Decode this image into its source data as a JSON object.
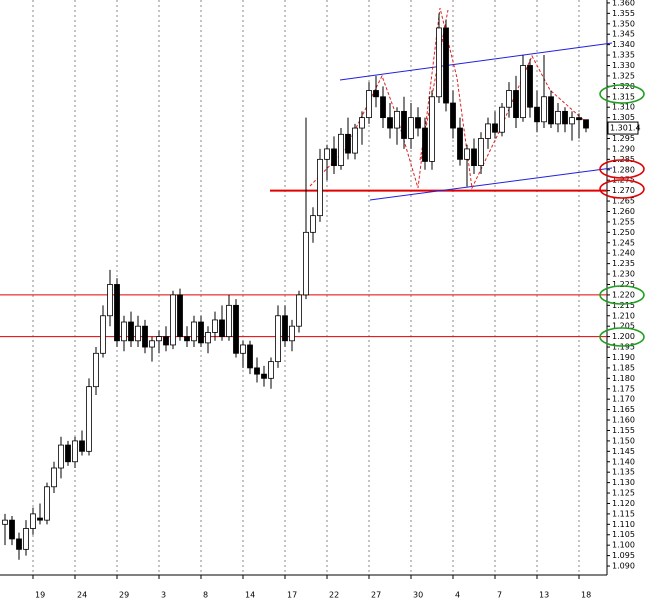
{
  "chart_data": {
    "type": "candlestick",
    "categories": [
      null,
      null,
      null,
      null,
      "19",
      null,
      null,
      null,
      null,
      null,
      "24",
      null,
      null,
      null,
      null,
      null,
      "29",
      null,
      null,
      null,
      null,
      null,
      "3",
      null,
      null,
      null,
      null,
      null,
      "8",
      null,
      null,
      null,
      null,
      null,
      "14",
      null,
      null,
      null,
      null,
      null,
      "17",
      null,
      null,
      null,
      null,
      null,
      "22",
      null,
      null,
      null,
      null,
      null,
      "27",
      null,
      null,
      null,
      null,
      null,
      "30",
      null,
      null,
      null,
      null,
      null,
      "4",
      null,
      null,
      null,
      null,
      null,
      "7",
      null,
      null,
      null,
      null,
      null,
      "13",
      null,
      null,
      null,
      null,
      null,
      "18",
      null
    ],
    "open": [
      1.11,
      1.112,
      1.103,
      1.098,
      1.108,
      1.113,
      1.112,
      1.128,
      1.137,
      1.148,
      1.14,
      1.15,
      1.145,
      1.176,
      1.192,
      1.21,
      1.225,
      1.198,
      1.207,
      1.198,
      1.205,
      1.195,
      1.198,
      1.2,
      1.196,
      1.22,
      1.2,
      1.198,
      1.207,
      1.197,
      1.202,
      1.208,
      1.2,
      1.215,
      1.192,
      1.196,
      1.185,
      1.182,
      1.18,
      1.188,
      1.21,
      1.198,
      1.205,
      1.22,
      1.25,
      1.258,
      1.285,
      1.29,
      1.282,
      1.297,
      1.288,
      1.3,
      1.305,
      1.318,
      1.315,
      1.305,
      1.3,
      1.308,
      1.295,
      1.305,
      1.3,
      1.284,
      1.315,
      1.348,
      1.312,
      1.3,
      1.285,
      1.29,
      1.282,
      1.295,
      1.302,
      1.298,
      1.31,
      1.318,
      1.305,
      1.33,
      1.31,
      1.303,
      1.315,
      1.302,
      1.308,
      1.302,
      1.305,
      1.304
    ],
    "high": [
      1.115,
      1.114,
      1.106,
      1.112,
      1.118,
      1.12,
      1.13,
      1.14,
      1.152,
      1.15,
      1.152,
      1.155,
      1.18,
      1.195,
      1.215,
      1.232,
      1.228,
      1.21,
      1.212,
      1.21,
      1.208,
      1.2,
      1.203,
      1.205,
      1.222,
      1.223,
      1.205,
      1.21,
      1.21,
      1.205,
      1.212,
      1.215,
      1.22,
      1.218,
      1.198,
      1.198,
      1.19,
      1.186,
      1.19,
      1.215,
      1.215,
      1.208,
      1.222,
      1.305,
      1.262,
      1.29,
      1.292,
      1.296,
      1.3,
      1.305,
      1.302,
      1.308,
      1.322,
      1.325,
      1.32,
      1.312,
      1.31,
      1.315,
      1.312,
      1.31,
      1.305,
      1.318,
      1.355,
      1.352,
      1.318,
      1.305,
      1.292,
      1.295,
      1.298,
      1.305,
      1.308,
      1.312,
      1.322,
      1.325,
      1.335,
      1.333,
      1.318,
      1.335,
      1.318,
      1.312,
      1.31,
      1.308,
      1.307,
      1.304
    ],
    "low": [
      1.1,
      1.1,
      1.093,
      1.095,
      1.105,
      1.11,
      1.11,
      1.125,
      1.132,
      1.138,
      1.137,
      1.143,
      1.143,
      1.172,
      1.19,
      1.205,
      1.195,
      1.193,
      1.195,
      1.195,
      1.192,
      1.188,
      1.192,
      1.193,
      1.194,
      1.198,
      1.195,
      1.195,
      1.195,
      1.192,
      1.198,
      1.198,
      1.198,
      1.19,
      1.185,
      1.182,
      1.178,
      1.176,
      1.175,
      1.185,
      1.195,
      1.193,
      1.202,
      1.218,
      1.245,
      1.255,
      1.275,
      1.278,
      1.28,
      1.285,
      1.285,
      1.292,
      1.302,
      1.31,
      1.3,
      1.295,
      1.292,
      1.29,
      1.29,
      1.296,
      1.28,
      1.28,
      1.312,
      1.308,
      1.295,
      1.282,
      1.272,
      1.278,
      1.278,
      1.29,
      1.295,
      1.296,
      1.305,
      1.3,
      1.303,
      1.305,
      1.298,
      1.3,
      1.3,
      1.298,
      1.298,
      1.294,
      1.295,
      1.298
    ],
    "close": [
      1.112,
      1.103,
      1.098,
      1.108,
      1.115,
      1.112,
      1.128,
      1.137,
      1.148,
      1.14,
      1.15,
      1.145,
      1.176,
      1.192,
      1.21,
      1.225,
      1.198,
      1.207,
      1.198,
      1.205,
      1.195,
      1.198,
      1.2,
      1.196,
      1.22,
      1.2,
      1.198,
      1.207,
      1.197,
      1.202,
      1.208,
      1.2,
      1.215,
      1.192,
      1.196,
      1.185,
      1.182,
      1.18,
      1.188,
      1.21,
      1.198,
      1.205,
      1.22,
      1.25,
      1.258,
      1.285,
      1.29,
      1.282,
      1.297,
      1.288,
      1.3,
      1.305,
      1.318,
      1.315,
      1.305,
      1.3,
      1.308,
      1.295,
      1.305,
      1.3,
      1.284,
      1.315,
      1.348,
      1.312,
      1.3,
      1.285,
      1.29,
      1.282,
      1.295,
      1.302,
      1.298,
      1.31,
      1.318,
      1.305,
      1.33,
      1.31,
      1.303,
      1.315,
      1.302,
      1.308,
      1.302,
      1.305,
      1.304,
      1.3
    ],
    "last_price_label": "1.301.4",
    "ylim": [
      1.0857,
      1.3614
    ],
    "yticks": [
      {
        "value": 1.09,
        "label": "1.090"
      },
      {
        "value": 1.095,
        "label": "1.095"
      },
      {
        "value": 1.1,
        "label": "1.100"
      },
      {
        "value": 1.105,
        "label": "1.105"
      },
      {
        "value": 1.11,
        "label": "1.110"
      },
      {
        "value": 1.115,
        "label": "1.115"
      },
      {
        "value": 1.12,
        "label": "1.120"
      },
      {
        "value": 1.125,
        "label": "1.125"
      },
      {
        "value": 1.13,
        "label": "1.130"
      },
      {
        "value": 1.135,
        "label": "1.135"
      },
      {
        "value": 1.14,
        "label": "1.140"
      },
      {
        "value": 1.145,
        "label": "1.145"
      },
      {
        "value": 1.15,
        "label": "1.150"
      },
      {
        "value": 1.155,
        "label": "1.155"
      },
      {
        "value": 1.16,
        "label": "1.160"
      },
      {
        "value": 1.165,
        "label": "1.165"
      },
      {
        "value": 1.17,
        "label": "1.170"
      },
      {
        "value": 1.175,
        "label": "1.175"
      },
      {
        "value": 1.18,
        "label": "1.180"
      },
      {
        "value": 1.185,
        "label": "1.185"
      },
      {
        "value": 1.19,
        "label": "1.190"
      },
      {
        "value": 1.195,
        "label": "1.195"
      },
      {
        "value": 1.2,
        "label": "1.200"
      },
      {
        "value": 1.205,
        "label": "1.205"
      },
      {
        "value": 1.21,
        "label": "1.210"
      },
      {
        "value": 1.215,
        "label": "1.215"
      },
      {
        "value": 1.22,
        "label": "1.220"
      },
      {
        "value": 1.225,
        "label": "1.225"
      },
      {
        "value": 1.23,
        "label": "1.230"
      },
      {
        "value": 1.235,
        "label": "1.235"
      },
      {
        "value": 1.24,
        "label": "1.240"
      },
      {
        "value": 1.245,
        "label": "1.245"
      },
      {
        "value": 1.25,
        "label": "1.250"
      },
      {
        "value": 1.255,
        "label": "1.255"
      },
      {
        "value": 1.26,
        "label": "1.260"
      },
      {
        "value": 1.265,
        "label": "1.265"
      },
      {
        "value": 1.27,
        "label": "1.270"
      },
      {
        "value": 1.275,
        "label": "1.275"
      },
      {
        "value": 1.28,
        "label": "1.280"
      },
      {
        "value": 1.285,
        "label": "1.285"
      },
      {
        "value": 1.29,
        "label": "1.290"
      },
      {
        "value": 1.295,
        "label": "1.295"
      },
      {
        "value": 1.3,
        "label": "1.300"
      },
      {
        "value": 1.305,
        "label": "1.305"
      },
      {
        "value": 1.31,
        "label": "1.310"
      },
      {
        "value": 1.315,
        "label": "1.315"
      },
      {
        "value": 1.32,
        "label": "1.320"
      },
      {
        "value": 1.325,
        "label": "1.325"
      },
      {
        "value": 1.33,
        "label": "1.330"
      },
      {
        "value": 1.335,
        "label": "1.335"
      },
      {
        "value": 1.34,
        "label": "1.340"
      },
      {
        "value": 1.345,
        "label": "1.345"
      },
      {
        "value": 1.35,
        "label": "1.350"
      },
      {
        "value": 1.355,
        "label": "1.355"
      },
      {
        "value": 1.36,
        "label": "1.360"
      }
    ],
    "levels": [
      {
        "value": 1.27,
        "color": "#e00000"
      },
      {
        "value": 1.22,
        "color": "#e00000"
      },
      {
        "value": 1.2,
        "color": "#e00000"
      }
    ],
    "grid": true
  }
}
